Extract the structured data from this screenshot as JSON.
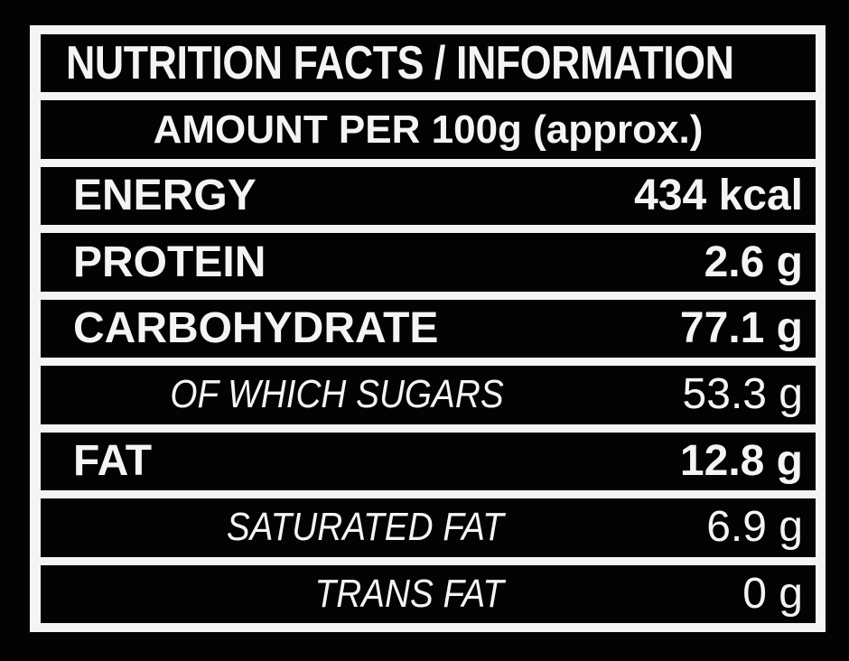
{
  "title": "NUTRITION FACTS / INFORMATION",
  "subtitle": "AMOUNT PER 100g (approx.)",
  "rows": [
    {
      "label": "ENERGY",
      "value": "434 kcal"
    },
    {
      "label": "PROTEIN",
      "value": "2.6 g"
    },
    {
      "label": "CARBOHYDRATE",
      "value": "77.1 g"
    },
    {
      "label": "OF WHICH SUGARS",
      "value": "53.3 g"
    },
    {
      "label": "FAT",
      "value": "12.8 g"
    },
    {
      "label": "SATURATED FAT",
      "value": "6.9 g"
    },
    {
      "label": "TRANS FAT",
      "value": "0 g"
    }
  ]
}
